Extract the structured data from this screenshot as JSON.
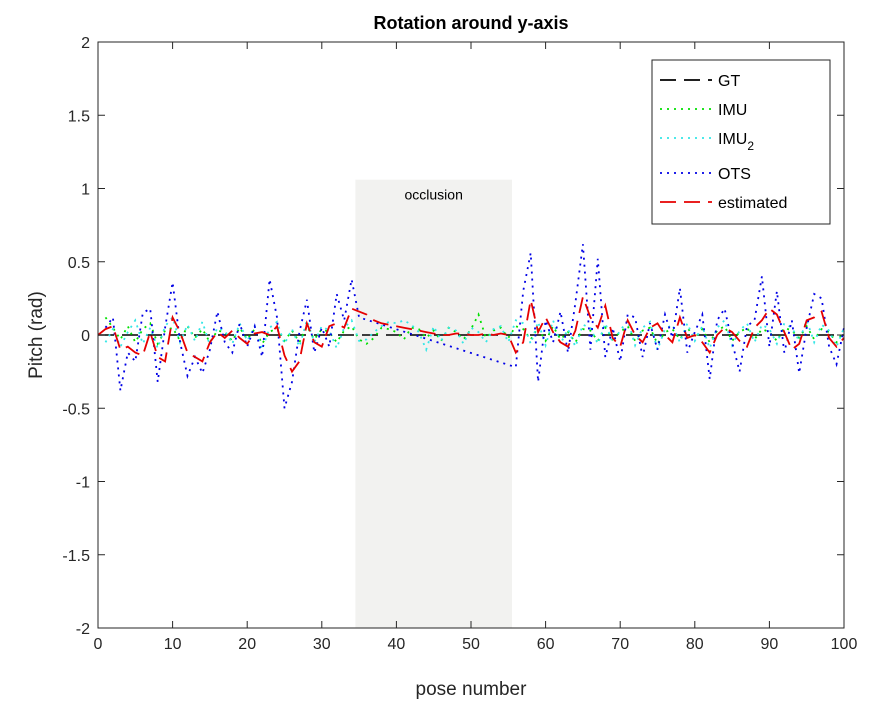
{
  "chart_data": {
    "type": "line",
    "title": "Rotation around y-axis",
    "xlabel": "pose number",
    "ylabel": "Pitch (rad)",
    "xlim": [
      0,
      100
    ],
    "ylim": [
      -2,
      2
    ],
    "xticks": [
      0,
      10,
      20,
      30,
      40,
      50,
      60,
      70,
      80,
      90,
      100
    ],
    "yticks": [
      -2,
      -1.5,
      -1,
      -0.5,
      0,
      0.5,
      1,
      1.5,
      2
    ],
    "xtick_labels": [
      "0",
      "10",
      "20",
      "30",
      "40",
      "50",
      "60",
      "70",
      "80",
      "90",
      "100"
    ],
    "ytick_labels": [
      "-2",
      "-1.5",
      "-1",
      "-0.5",
      "0",
      "0.5",
      "1",
      "1.5",
      "2"
    ],
    "grid": false,
    "legend_position": "top-right",
    "annotation": {
      "label": "occlusion",
      "x_range": [
        34.5,
        55.5
      ],
      "y_top": 1.06,
      "color": "#f2f2f0"
    },
    "series": [
      {
        "name": "GT",
        "color": "#000000",
        "dash": "dashed",
        "x": [
          0,
          100
        ],
        "y": [
          0,
          0
        ]
      },
      {
        "name": "IMU",
        "color": "#00e000",
        "dash": "dotted",
        "x": [
          1,
          2,
          3,
          4,
          5,
          6,
          7,
          8,
          9,
          10,
          11,
          12,
          13,
          14,
          15,
          16,
          17,
          18,
          19,
          20,
          21,
          22,
          23,
          24,
          25,
          26,
          27,
          28,
          29,
          30,
          31,
          32,
          33,
          34,
          35,
          36,
          37,
          38,
          39,
          40,
          41,
          42,
          43,
          44,
          45,
          46,
          47,
          48,
          49,
          50,
          51,
          52,
          53,
          54,
          55,
          56,
          57,
          58,
          59,
          60,
          61,
          62,
          63,
          64,
          65,
          66,
          67,
          68,
          69,
          70,
          71,
          72,
          73,
          74,
          75,
          76,
          77,
          78,
          79,
          80,
          81,
          82,
          83,
          84,
          85,
          86,
          87,
          88,
          89,
          90,
          91,
          92,
          93,
          94,
          95,
          96,
          97,
          98,
          99,
          100
        ],
        "y": [
          0.12,
          0.05,
          -0.03,
          0.06,
          -0.05,
          0.04,
          0.08,
          -0.06,
          0.03,
          0.05,
          -0.04,
          0.06,
          -0.02,
          0.04,
          -0.05,
          0.03,
          0.02,
          -0.04,
          0.05,
          -0.03,
          0.04,
          -0.06,
          0.02,
          0.05,
          -0.04,
          0.03,
          -0.05,
          0.06,
          -0.03,
          0.04,
          0.02,
          -0.05,
          0.03,
          0.06,
          -0.03,
          -0.06,
          -0.02,
          0.05,
          0.04,
          0.02,
          -0.03,
          0.05,
          0.04,
          -0.02,
          0.03,
          -0.04,
          0.05,
          0.02,
          -0.03,
          0.04,
          0.14,
          -0.02,
          0.03,
          0.05,
          -0.02,
          0.06,
          0.04,
          -0.03,
          0.05,
          -0.04,
          0.06,
          -0.03,
          0.02,
          -0.05,
          0.04,
          0.03,
          -0.04,
          0.05,
          -0.03,
          0.02,
          0.06,
          -0.04,
          0.03,
          0.05,
          -0.06,
          0.02,
          0.04,
          -0.03,
          0.05,
          -0.02,
          0.04,
          -0.05,
          0.03,
          0.06,
          -0.04,
          0.02,
          0.05,
          -0.03,
          0.04,
          0.02,
          -0.04,
          0.05,
          0.03,
          -0.02,
          0.06,
          -0.03,
          0.04,
          0.02,
          -0.05,
          0.03
        ]
      },
      {
        "name": "IMU_2",
        "color": "#33e6e6",
        "dash": "dotted",
        "x": [
          1,
          2,
          3,
          4,
          5,
          6,
          7,
          8,
          9,
          10,
          11,
          12,
          13,
          14,
          15,
          16,
          17,
          18,
          19,
          20,
          21,
          22,
          23,
          24,
          25,
          26,
          27,
          28,
          29,
          30,
          31,
          32,
          33,
          34,
          35,
          36,
          37,
          38,
          39,
          40,
          41,
          42,
          43,
          44,
          45,
          46,
          47,
          48,
          49,
          50,
          51,
          52,
          53,
          54,
          55,
          56,
          57,
          58,
          59,
          60,
          61,
          62,
          63,
          64,
          65,
          66,
          67,
          68,
          69,
          70,
          71,
          72,
          73,
          74,
          75,
          76,
          77,
          78,
          79,
          80,
          81,
          82,
          83,
          84,
          85,
          86,
          87,
          88,
          89,
          90,
          91,
          92,
          93,
          94,
          95,
          96,
          97,
          98,
          99,
          100
        ],
        "y": [
          -0.05,
          0.04,
          -0.08,
          0.02,
          0.1,
          -0.06,
          0.05,
          -0.09,
          0.06,
          0.12,
          -0.05,
          0.07,
          -0.04,
          0.09,
          -0.07,
          0.05,
          0.03,
          -0.06,
          0.08,
          -0.04,
          0.06,
          -0.1,
          0.05,
          0.09,
          -0.06,
          0.04,
          -0.08,
          0.1,
          -0.05,
          0.06,
          0.03,
          -0.09,
          0.05,
          0.1,
          -0.04,
          -0.03,
          0.02,
          0.06,
          0.09,
          0.08,
          0.1,
          0.07,
          0.02,
          -0.1,
          0.06,
          -0.04,
          0.05,
          0.03,
          -0.06,
          0.05,
          0.02,
          -0.05,
          0.04,
          0.06,
          -0.05,
          0.1,
          0.08,
          -0.06,
          0.09,
          -0.07,
          0.1,
          -0.06,
          0.04,
          -0.08,
          0.07,
          0.05,
          -0.06,
          0.08,
          -0.05,
          0.03,
          0.1,
          -0.07,
          0.05,
          0.09,
          -0.1,
          0.04,
          0.07,
          -0.05,
          0.08,
          -0.04,
          0.06,
          -0.09,
          0.05,
          0.1,
          -0.07,
          0.03,
          0.08,
          -0.05,
          0.07,
          0.04,
          -0.06,
          0.08,
          0.05,
          -0.04,
          0.1,
          -0.05,
          0.07,
          0.03,
          -0.08,
          0.05
        ]
      },
      {
        "name": "OTS",
        "color": "#0000e6",
        "dash": "dotted",
        "x": [
          1,
          2,
          3,
          4,
          5,
          6,
          7,
          8,
          9,
          10,
          11,
          12,
          13,
          14,
          15,
          16,
          17,
          18,
          19,
          20,
          21,
          22,
          23,
          24,
          25,
          26,
          27,
          28,
          29,
          30,
          31,
          32,
          33,
          34,
          35,
          56,
          57,
          58,
          59,
          60,
          61,
          62,
          63,
          64,
          65,
          66,
          67,
          68,
          69,
          70,
          71,
          72,
          73,
          74,
          75,
          76,
          77,
          78,
          79,
          80,
          81,
          82,
          83,
          84,
          85,
          86,
          87,
          88,
          89,
          90,
          91,
          92,
          93,
          94,
          95,
          96,
          97,
          98,
          99,
          100
        ],
        "y": [
          0.05,
          0.12,
          -0.38,
          -0.12,
          -0.18,
          0.15,
          0.18,
          -0.32,
          0.05,
          0.36,
          -0.05,
          -0.28,
          -0.15,
          -0.26,
          -0.1,
          0.16,
          -0.05,
          -0.12,
          0.08,
          -0.08,
          0.06,
          -0.15,
          0.38,
          0.12,
          -0.5,
          -0.32,
          0.02,
          0.24,
          -0.12,
          0.05,
          -0.08,
          0.28,
          0.1,
          0.38,
          0.12,
          -0.22,
          0.3,
          0.56,
          -0.32,
          0.1,
          -0.05,
          0.16,
          -0.12,
          0.22,
          0.62,
          -0.1,
          0.52,
          -0.15,
          0.05,
          -0.18,
          0.14,
          0.12,
          -0.15,
          0.08,
          -0.1,
          0.14,
          -0.02,
          0.32,
          -0.12,
          0.02,
          0.14,
          -0.3,
          0.1,
          0.18,
          -0.05,
          -0.25,
          0.06,
          0.1,
          0.4,
          -0.08,
          0.3,
          -0.12,
          0.1,
          -0.26,
          0.05,
          0.28,
          0.25,
          -0.08,
          -0.2,
          0.05
        ]
      },
      {
        "name": "estimated",
        "color": "#e60000",
        "dash": "dashed",
        "x": [
          0,
          1,
          2,
          3,
          4,
          5,
          6,
          7,
          8,
          9,
          10,
          11,
          12,
          13,
          14,
          15,
          16,
          17,
          18,
          19,
          20,
          21,
          22,
          23,
          24,
          25,
          26,
          27,
          28,
          29,
          30,
          31,
          32,
          33,
          34,
          35,
          36,
          37,
          38,
          39,
          40,
          41,
          42,
          43,
          44,
          45,
          46,
          47,
          48,
          49,
          50,
          51,
          52,
          53,
          54,
          55,
          56,
          57,
          58,
          59,
          60,
          61,
          62,
          63,
          64,
          65,
          66,
          67,
          68,
          69,
          70,
          71,
          72,
          73,
          74,
          75,
          76,
          77,
          78,
          79,
          80,
          81,
          82,
          83,
          84,
          85,
          86,
          87,
          88,
          89,
          90,
          91,
          92,
          93,
          94,
          95,
          96,
          97,
          98,
          99,
          100
        ],
        "y": [
          0,
          0.04,
          0.06,
          -0.1,
          -0.08,
          -0.12,
          -0.14,
          0.02,
          -0.15,
          -0.18,
          0.12,
          0.02,
          -0.12,
          -0.15,
          -0.18,
          -0.05,
          0.02,
          -0.02,
          0.03,
          -0.02,
          -0.06,
          0.01,
          0.02,
          0.0,
          0.06,
          -0.14,
          -0.25,
          -0.18,
          0.08,
          -0.05,
          -0.08,
          0.06,
          0.08,
          0.05,
          0.18,
          0.16,
          0.14,
          0.1,
          0.08,
          0.07,
          0.06,
          0.05,
          0.04,
          0.03,
          0.02,
          0.01,
          0.0,
          0.0,
          0.01,
          0.01,
          0.0,
          0.0,
          0.01,
          0.0,
          0.01,
          0.0,
          -0.12,
          -0.05,
          0.24,
          0.02,
          0.12,
          0.02,
          -0.05,
          -0.08,
          0.03,
          0.26,
          0.12,
          0.05,
          0.2,
          -0.02,
          -0.08,
          0.1,
          0.0,
          -0.05,
          0.05,
          0.08,
          0.0,
          -0.05,
          0.12,
          -0.02,
          0.0,
          -0.05,
          -0.12,
          0.0,
          0.05,
          0.02,
          -0.04,
          -0.08,
          0.05,
          0.1,
          0.18,
          0.14,
          0.02,
          -0.1,
          -0.06,
          0.1,
          0.12,
          0.16,
          -0.02,
          -0.08,
          -0.02
        ]
      }
    ]
  }
}
